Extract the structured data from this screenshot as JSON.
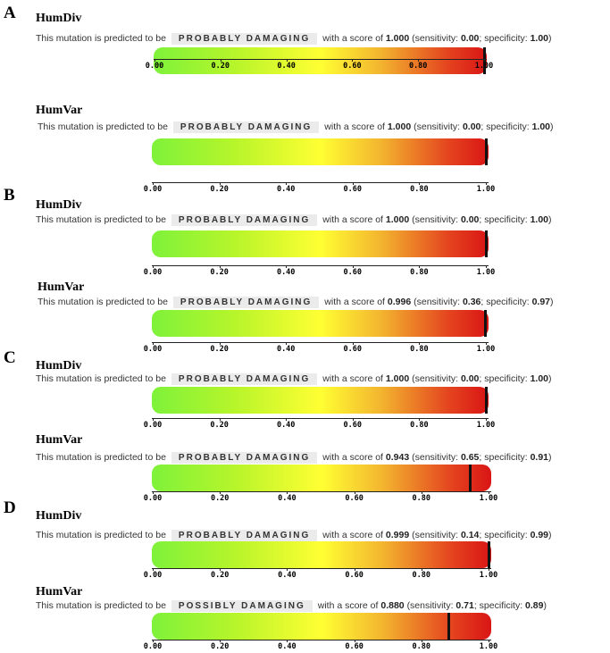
{
  "panels": [
    {
      "letter": "A",
      "rows": [
        {
          "method": "HumDiv",
          "prefix": "This mutation is predicted to be",
          "prediction": "PROBABLY DAMAGING",
          "score_text": "with a score of",
          "score": "1.000",
          "sens_label": "(sensitivity:",
          "sensitivity": "0.00",
          "spec_label": "; specificity:",
          "specificity": "1.00",
          "close": ")",
          "score_value": 1.0
        },
        {
          "method": "HumVar",
          "prefix": "This mutation is predicted to be",
          "prediction": "PROBABLY DAMAGING",
          "score_text": "with a score of",
          "score": "1.000",
          "sens_label": "(sensitivity:",
          "sensitivity": "0.00",
          "spec_label": "; specificity:",
          "specificity": "1.00",
          "close": ")",
          "score_value": 1.0
        }
      ]
    },
    {
      "letter": "B",
      "rows": [
        {
          "method": "HumDiv",
          "prefix": "This mutation is predicted to be",
          "prediction": "PROBABLY DAMAGING",
          "score_text": "with a score of",
          "score": "1.000",
          "sens_label": "(sensitivity:",
          "sensitivity": "0.00",
          "spec_label": "; specificity:",
          "specificity": "1.00",
          "close": ")",
          "score_value": 1.0
        },
        {
          "method": "HumVar",
          "prefix": "This mutation is predicted to be",
          "prediction": "PROBABLY DAMAGING",
          "score_text": "with a score of",
          "score": "0.996",
          "sens_label": "(sensitivity:",
          "sensitivity": "0.36",
          "spec_label": "; specificity:",
          "specificity": "0.97",
          "close": ")",
          "score_value": 0.996
        }
      ]
    },
    {
      "letter": "C",
      "rows": [
        {
          "method": "HumDiv",
          "prefix": "This mutation is predicted to be",
          "prediction": "PROBABLY DAMAGING",
          "score_text": "with a score of",
          "score": "1.000",
          "sens_label": "(sensitivity:",
          "sensitivity": "0.00",
          "spec_label": "; specificity:",
          "specificity": "1.00",
          "close": ")",
          "score_value": 1.0
        },
        {
          "method": "HumVar",
          "prefix": "This mutation is predicted to be",
          "prediction": "PROBABLY DAMAGING",
          "score_text": "with a score of",
          "score": "0.943",
          "sens_label": "(sensitivity:",
          "sensitivity": "0.65",
          "spec_label": "; specificity:",
          "specificity": "0.91",
          "close": ")",
          "score_value": 0.943
        }
      ]
    },
    {
      "letter": "D",
      "rows": [
        {
          "method": "HumDiv",
          "prefix": "This mutation is predicted to be",
          "prediction": "PROBABLY DAMAGING",
          "score_text": "with a score of",
          "score": "0.999",
          "sens_label": "(sensitivity:",
          "sensitivity": "0.14",
          "spec_label": "; specificity:",
          "specificity": "0.99",
          "close": ")",
          "score_value": 0.999
        },
        {
          "method": "HumVar",
          "prefix": "This mutation is predicted to be",
          "prediction": "POSSIBLY DAMAGING",
          "score_text": "with a score of",
          "score": "0.880",
          "sens_label": "(sensitivity:",
          "sensitivity": "0.71",
          "spec_label": "; specificity:",
          "specificity": "0.89",
          "close": ")",
          "score_value": 0.88
        }
      ]
    }
  ],
  "axis_ticks": [
    "0.00",
    "0.20",
    "0.40",
    "0.60",
    "0.80",
    "1.00"
  ],
  "colors": {
    "scale_low": "#7ef23a",
    "scale_mid": "#ffff33",
    "scale_high": "#d91515",
    "marker": "#111111",
    "badge_bg": "#ebebeb"
  }
}
